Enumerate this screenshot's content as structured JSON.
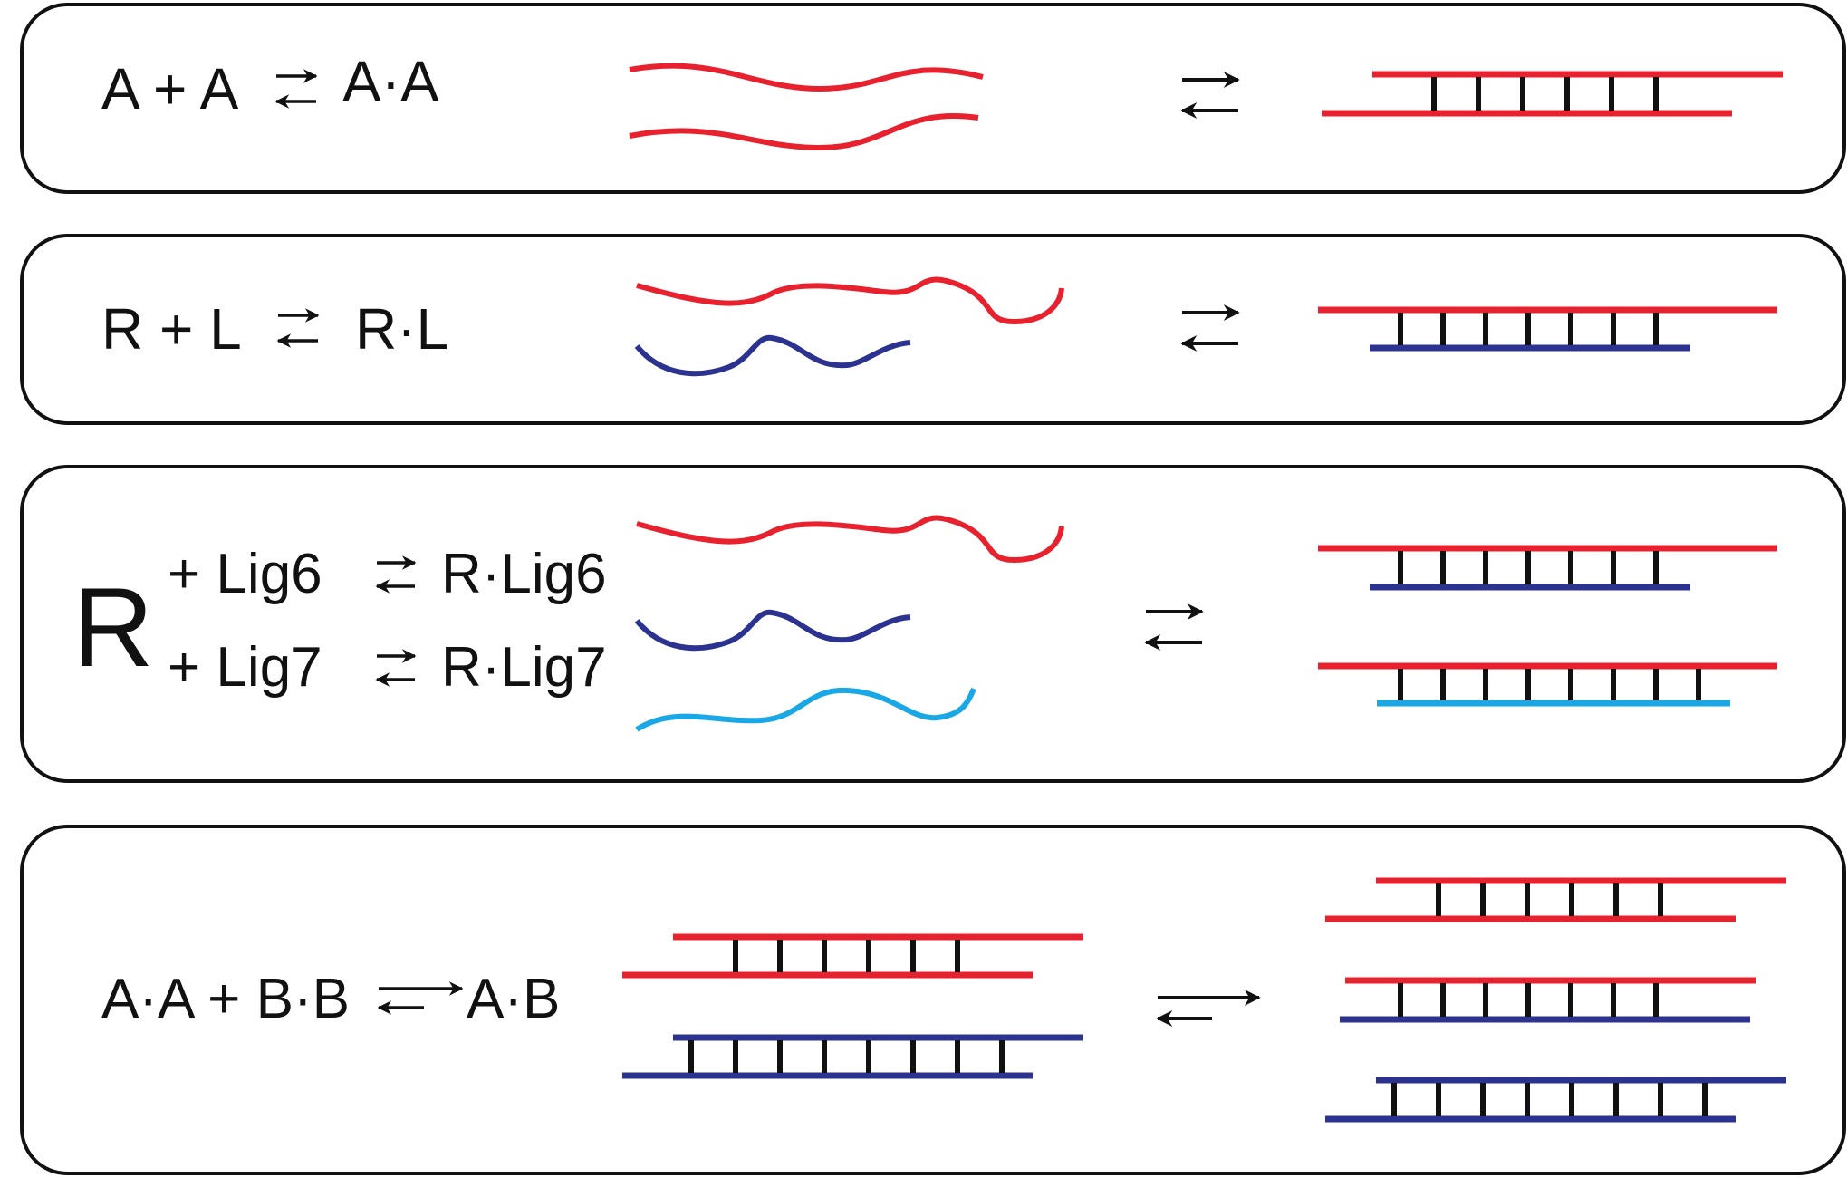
{
  "colors": {
    "strand_a": "#e8212e",
    "strand_b": "#2b3290",
    "strand_c": "#1aa7e6",
    "rung": "#111111",
    "box": "#111111"
  },
  "panels": [
    {
      "id": "panel-aa",
      "equation": {
        "lhs": "A + A",
        "rhs": "A·A"
      }
    },
    {
      "id": "panel-rl",
      "equation": {
        "lhs": "R + L",
        "rhs": "R·L"
      }
    },
    {
      "id": "panel-rlig",
      "equation": {
        "big": "R",
        "row1_lhs": "+ Lig6",
        "row1_rhs": "R·Lig6",
        "row2_lhs": "+ Lig7",
        "row2_rhs": "R·Lig7"
      }
    },
    {
      "id": "panel-ab",
      "equation": {
        "lhs": "A·A + B·B",
        "rhs": "A·B"
      }
    }
  ],
  "icons": {
    "equilibrium": "equilibrium-arrows-icon",
    "shifted_equilibrium": "forward-favored-equilibrium-icon"
  }
}
